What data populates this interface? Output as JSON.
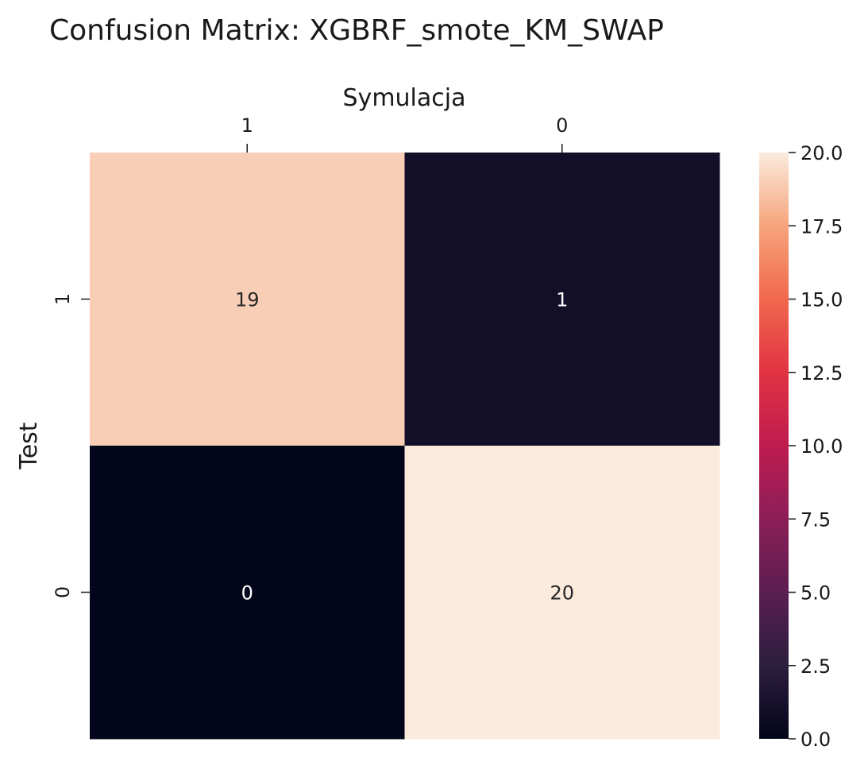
{
  "chart_data": {
    "type": "heatmap",
    "title": "Confusion Matrix: XGBRF_smote_KM_SWAP",
    "xlabel": "Symulacja",
    "ylabel": "Test",
    "x_categories": [
      "1",
      "0"
    ],
    "y_categories": [
      "1",
      "0"
    ],
    "values": [
      [
        19,
        1
      ],
      [
        0,
        20
      ]
    ],
    "colorbar": {
      "min": 0.0,
      "max": 20.0,
      "ticks": [
        "0.0",
        "2.5",
        "5.0",
        "7.5",
        "10.0",
        "12.5",
        "15.0",
        "17.5",
        "20.0"
      ],
      "colormap": "rocket"
    },
    "x_axis_position": "top",
    "grid": false
  }
}
